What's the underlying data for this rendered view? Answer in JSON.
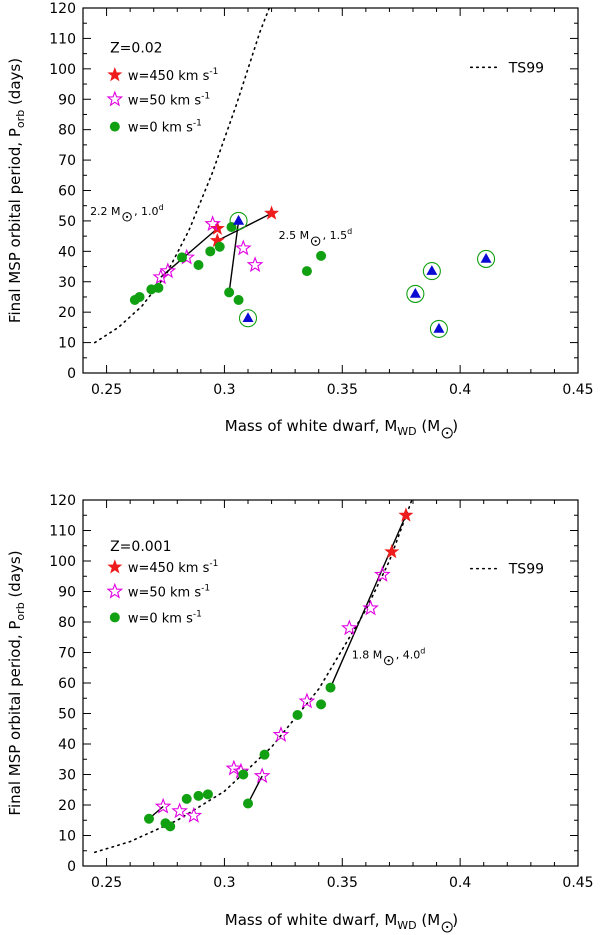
{
  "chart_data": [
    {
      "type": "scatter",
      "panel_id": "top",
      "xlabel": "Mass of white dwarf,  M",
      "xlabel_sub": "WD",
      "xlabel_unit": " (M",
      "xlabel_unit_close": ")",
      "ylabel": "Final MSP orbital period,  P",
      "ylabel_sub": "orb",
      "ylabel_unit": "  (days)",
      "xlim": [
        0.24,
        0.45
      ],
      "ylim": [
        0,
        120
      ],
      "xticks": [
        0.25,
        0.3,
        0.35,
        0.4,
        0.45
      ],
      "xtick_labels": [
        "0.25",
        "0.3",
        "0.35",
        "0.4",
        "0.45"
      ],
      "yticks": [
        0,
        10,
        20,
        30,
        40,
        50,
        60,
        70,
        80,
        90,
        100,
        110,
        120
      ],
      "ytick_labels": [
        "0",
        "10",
        "20",
        "30",
        "40",
        "50",
        "60",
        "70",
        "80",
        "90",
        "100",
        "110",
        "120"
      ],
      "metallicity": "Z=0.02",
      "legend": [
        {
          "label": "w=450 km s",
          "sup": "-1",
          "marker": "red-star"
        },
        {
          "label": "w=50 km s",
          "sup": "-1",
          "marker": "magenta-open-star"
        },
        {
          "label": "w=0 km s",
          "sup": "-1",
          "marker": "green-dot"
        }
      ],
      "model_label": "TS99",
      "model_curve": {
        "x": [
          0.245,
          0.255,
          0.265,
          0.275,
          0.285,
          0.295,
          0.305,
          0.315,
          0.32
        ],
        "y": [
          10,
          15,
          22,
          32,
          47,
          66,
          88,
          112,
          122
        ]
      },
      "series": [
        {
          "name": "w=450 km s-1",
          "marker": "red-star",
          "x": [
            0.297,
            0.297,
            0.32
          ],
          "y": [
            47.5,
            43.5,
            52.5
          ]
        },
        {
          "name": "w=50 km s-1",
          "marker": "magenta-open-star",
          "x": [
            0.295,
            0.284,
            0.276,
            0.273,
            0.308,
            0.313
          ],
          "y": [
            49,
            38,
            33.5,
            31.5,
            41,
            35.5
          ]
        },
        {
          "name": "w=0 km s-1",
          "marker": "green-dot",
          "x": [
            0.262,
            0.264,
            0.269,
            0.272,
            0.282,
            0.289,
            0.294,
            0.298,
            0.302,
            0.306,
            0.303,
            0.335,
            0.341
          ],
          "y": [
            24,
            25,
            27.5,
            28,
            38,
            35.5,
            40,
            41.5,
            26.5,
            24,
            48,
            33.5,
            38.5
          ]
        },
        {
          "name": "circled",
          "marker": "blue-triangle-circle",
          "x": [
            0.306,
            0.31,
            0.381,
            0.388,
            0.391,
            0.411
          ],
          "y": [
            50,
            18,
            26,
            33.5,
            14.5,
            37.5
          ]
        }
      ],
      "tracks": [
        {
          "x": [
            0.273,
            0.297
          ],
          "y": [
            31.5,
            47.5
          ]
        },
        {
          "x": [
            0.297,
            0.32
          ],
          "y": [
            43.5,
            52.5
          ]
        },
        {
          "x": [
            0.302,
            0.306
          ],
          "y": [
            26.5,
            50
          ]
        }
      ],
      "annotations": [
        {
          "text": "2.2 M",
          "after": " , 1.0",
          "sup": "d",
          "x": 0.243,
          "y": 52
        },
        {
          "text": "2.5 M",
          "after": " , 1.5",
          "sup": "d",
          "x": 0.323,
          "y": 44
        }
      ]
    },
    {
      "type": "scatter",
      "panel_id": "bottom",
      "xlabel": "Mass of white dwarf,  M",
      "xlabel_sub": "WD",
      "xlabel_unit": " (M",
      "xlabel_unit_close": ")",
      "ylabel": "Final MSP orbital period,  P",
      "ylabel_sub": "orb",
      "ylabel_unit": "  (days)",
      "xlim": [
        0.24,
        0.45
      ],
      "ylim": [
        0,
        120
      ],
      "xticks": [
        0.25,
        0.3,
        0.35,
        0.4,
        0.45
      ],
      "xtick_labels": [
        "0.25",
        "0.3",
        "0.35",
        "0.4",
        "0.45"
      ],
      "yticks": [
        0,
        10,
        20,
        30,
        40,
        50,
        60,
        70,
        80,
        90,
        100,
        110,
        120
      ],
      "ytick_labels": [
        "0",
        "10",
        "20",
        "30",
        "40",
        "50",
        "60",
        "70",
        "80",
        "90",
        "100",
        "110",
        "120"
      ],
      "metallicity": "Z=0.001",
      "legend": [
        {
          "label": "w=450 km s",
          "sup": "-1",
          "marker": "red-star"
        },
        {
          "label": "w=50 km s",
          "sup": "-1",
          "marker": "magenta-open-star"
        },
        {
          "label": "w=0 km s",
          "sup": "-1",
          "marker": "green-dot"
        }
      ],
      "model_label": "TS99",
      "model_curve": {
        "x": [
          0.245,
          0.26,
          0.28,
          0.3,
          0.32,
          0.34,
          0.36,
          0.37,
          0.38
        ],
        "y": [
          4.5,
          8,
          15,
          24.5,
          39,
          58,
          84,
          100,
          121
        ]
      },
      "series": [
        {
          "name": "w=450 km s-1",
          "marker": "red-star",
          "x": [
            0.377,
            0.371
          ],
          "y": [
            115,
            103
          ]
        },
        {
          "name": "w=50 km s-1",
          "marker": "magenta-open-star",
          "x": [
            0.367,
            0.362,
            0.353,
            0.335,
            0.324,
            0.316,
            0.304,
            0.307,
            0.274,
            0.281,
            0.287
          ],
          "y": [
            95.5,
            84.5,
            78,
            54,
            43,
            29.5,
            32,
            31,
            19.5,
            18,
            16.5
          ]
        },
        {
          "name": "w=0 km s-1",
          "marker": "green-dot",
          "x": [
            0.345,
            0.341,
            0.331,
            0.317,
            0.308,
            0.31,
            0.268,
            0.275,
            0.277,
            0.284,
            0.289,
            0.293
          ],
          "y": [
            58.5,
            53,
            49.5,
            36.5,
            30,
            20.5,
            15.5,
            14,
            13,
            22,
            23,
            23.5
          ]
        }
      ],
      "tracks": [
        {
          "x": [
            0.345,
            0.377
          ],
          "y": [
            58.5,
            115
          ]
        },
        {
          "x": [
            0.31,
            0.316
          ],
          "y": [
            20.5,
            29.5
          ]
        },
        {
          "x": [
            0.268,
            0.274
          ],
          "y": [
            15.5,
            19.5
          ]
        }
      ],
      "annotations": [
        {
          "text": "1.8 M",
          "after": " , 4.0",
          "sup": "d",
          "x": 0.354,
          "y": 68
        }
      ]
    }
  ]
}
